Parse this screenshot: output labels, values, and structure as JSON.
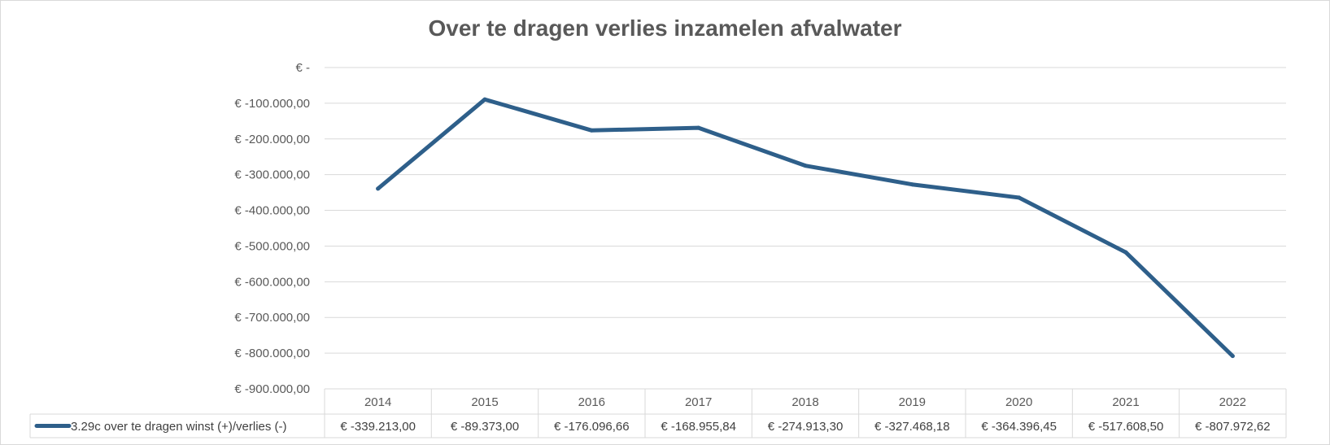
{
  "chart_data": {
    "type": "line",
    "title": "Over te dragen verlies inzamelen afvalwater",
    "xlabel": "",
    "ylabel": "",
    "categories": [
      "2014",
      "2015",
      "2016",
      "2017",
      "2018",
      "2019",
      "2020",
      "2021",
      "2022"
    ],
    "series": [
      {
        "name": "3.29c over te dragen winst (+)/verlies (-)",
        "color": "#2e5f8a",
        "values": [
          -339213.0,
          -89373.0,
          -176096.66,
          -168955.84,
          -274913.3,
          -327468.18,
          -364396.45,
          -517608.5,
          -807972.62
        ],
        "value_labels": [
          "€ -339.213,00",
          "€ -89.373,00",
          "€ -176.096,66",
          "€ -168.955,84",
          "€ -274.913,30",
          "€ -327.468,18",
          "€ -364.396,45",
          "€ -517.608,50",
          "€ -807.972,62"
        ]
      }
    ],
    "ylim": [
      -900000,
      0
    ],
    "yticks": [
      0,
      -100000,
      -200000,
      -300000,
      -400000,
      -500000,
      -600000,
      -700000,
      -800000,
      -900000
    ],
    "ytick_labels": [
      "€ -",
      "€ -100.000,00",
      "€ -200.000,00",
      "€ -300.000,00",
      "€ -400.000,00",
      "€ -500.000,00",
      "€ -600.000,00",
      "€ -700.000,00",
      "€ -800.000,00",
      "€ -900.000,00"
    ],
    "grid": true,
    "legend": "data-table",
    "gridline_color": "#d9d9d9"
  }
}
